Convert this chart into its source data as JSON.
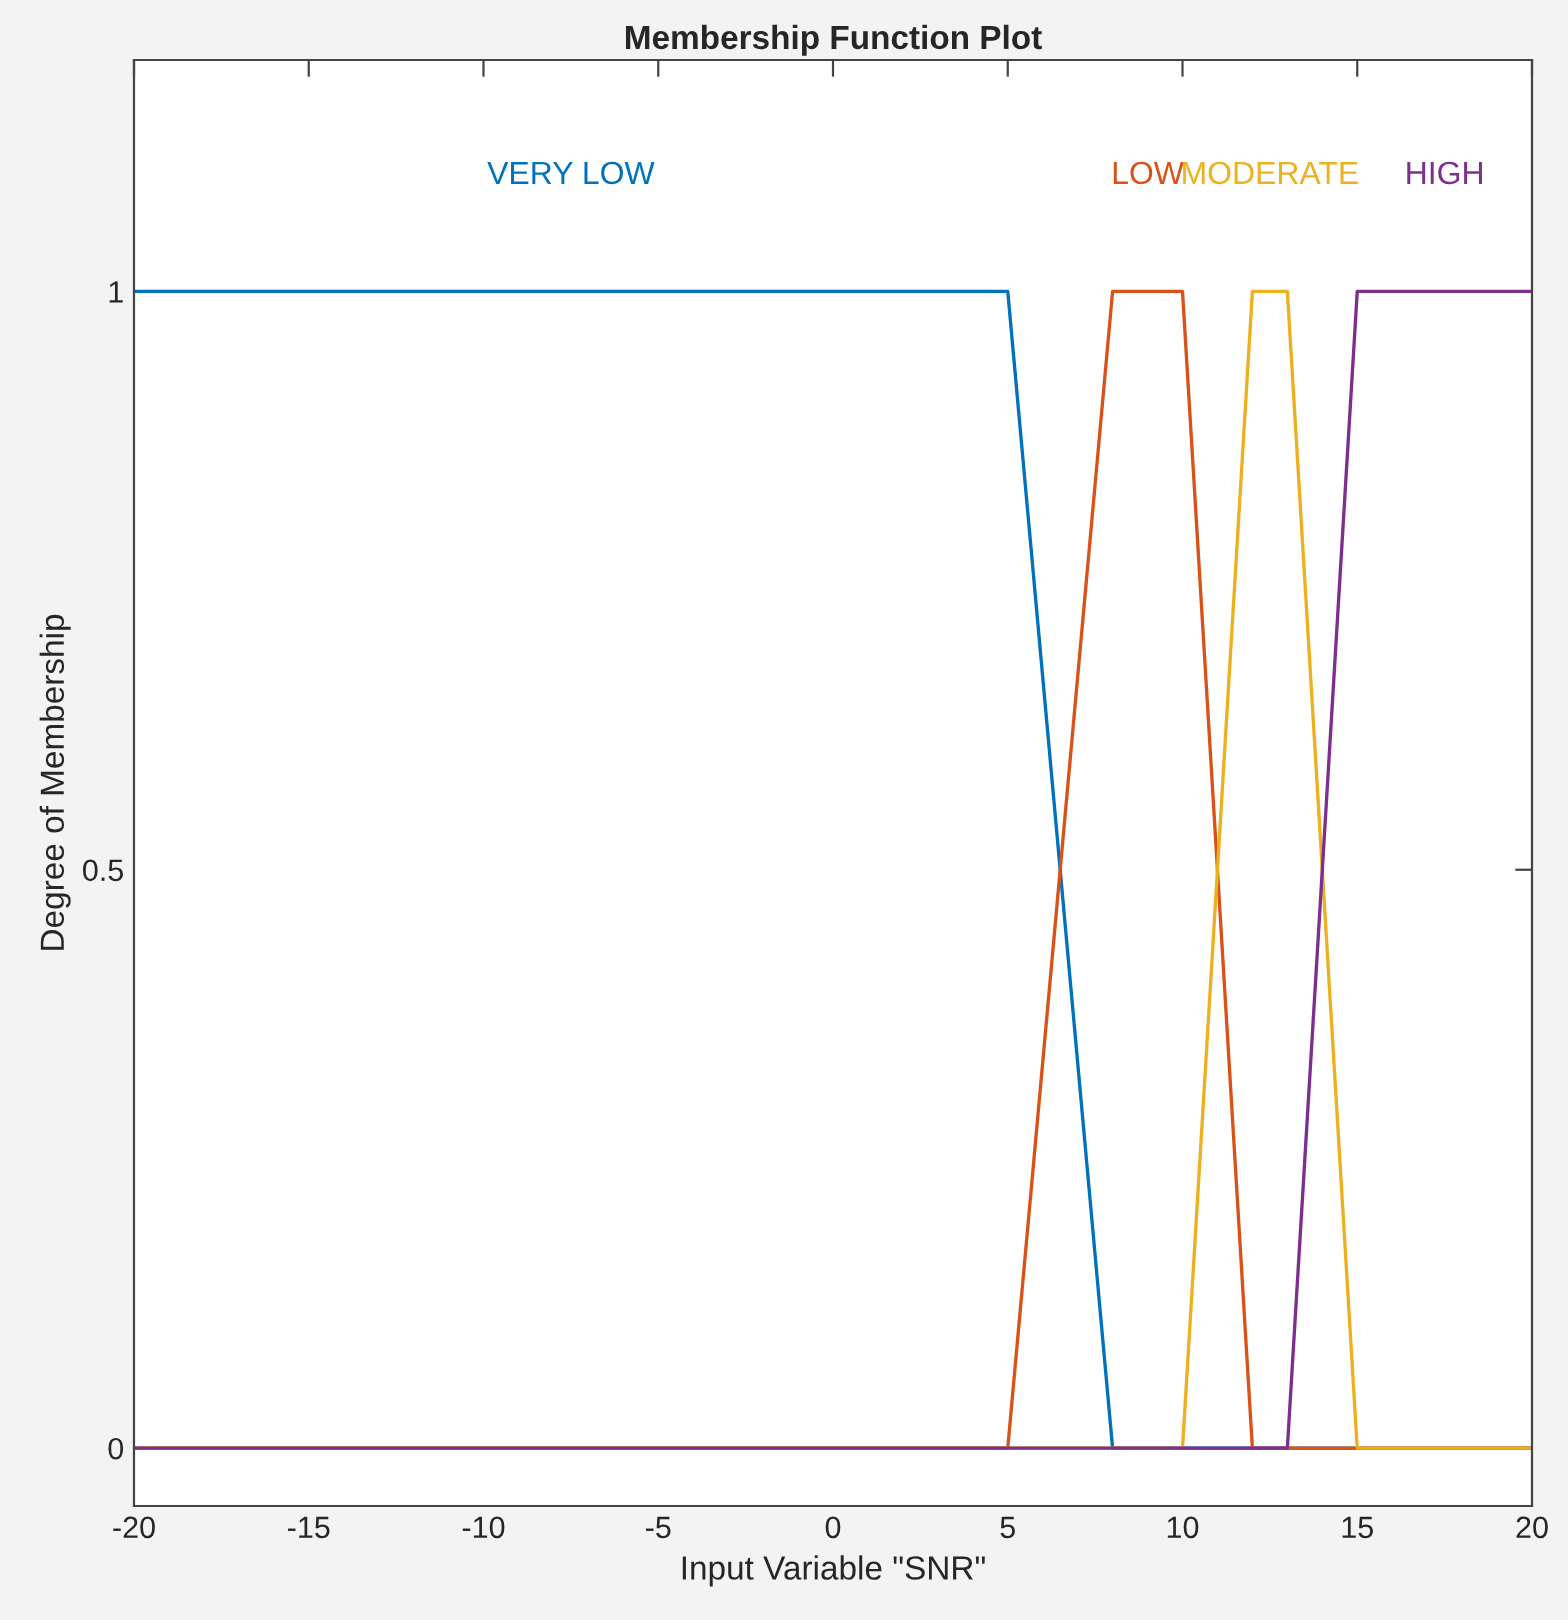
{
  "chart_data": {
    "type": "line",
    "title": "Membership Function Plot",
    "xlabel": "Input Variable \"SNR\"",
    "ylabel": "Degree of Membership",
    "series": [
      {
        "name": "VERY LOW",
        "color": "#0072bd",
        "x": [
          -20,
          5,
          8,
          20
        ],
        "values": [
          1,
          1,
          0,
          0
        ]
      },
      {
        "name": "LOW",
        "color": "#d95319",
        "x": [
          -20,
          5,
          8,
          10,
          12,
          20
        ],
        "values": [
          0,
          0,
          1,
          1,
          0,
          0
        ]
      },
      {
        "name": "MODERATE",
        "color": "#edb120",
        "x": [
          -20,
          10,
          12,
          13,
          15,
          20
        ],
        "values": [
          0,
          0,
          1,
          1,
          0,
          0
        ]
      },
      {
        "name": "HIGH",
        "color": "#7e2f8e",
        "x": [
          -20,
          13,
          15,
          20
        ],
        "values": [
          0,
          0,
          1,
          1
        ]
      }
    ],
    "xlim": [
      -20,
      20
    ],
    "ylim": [
      -0.05,
      1.2
    ],
    "xticks": [
      -20,
      -15,
      -10,
      -5,
      0,
      5,
      10,
      15,
      20
    ],
    "yticks": [
      0,
      0.5,
      1
    ],
    "grid": false,
    "legend": false,
    "marker": "none",
    "line_style": "solid"
  }
}
